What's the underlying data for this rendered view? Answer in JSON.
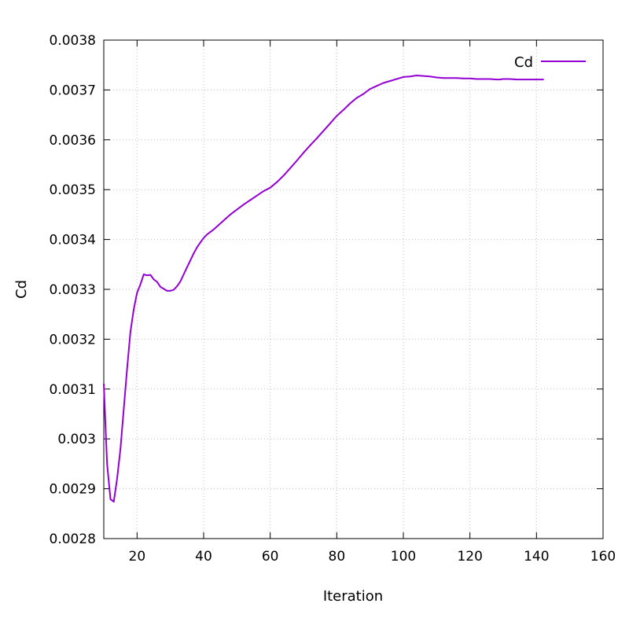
{
  "chart_data": {
    "type": "line",
    "title": "",
    "xlabel": "Iteration",
    "ylabel": "Cd",
    "xlim": [
      10,
      160
    ],
    "ylim": [
      0.0028,
      0.0038
    ],
    "xticks": [
      "20",
      "40",
      "60",
      "80",
      "100",
      "120",
      "140",
      "160"
    ],
    "yticks": [
      "0.0028",
      "0.0029",
      "0.003",
      "0.0031",
      "0.0032",
      "0.0033",
      "0.0034",
      "0.0035",
      "0.0036",
      "0.0037",
      "0.0038"
    ],
    "grid": true,
    "legend_position": "top-right",
    "series": [
      {
        "name": "Cd",
        "color": "#9400d3",
        "x": [
          10,
          11,
          12,
          13,
          14,
          15,
          16,
          17,
          18,
          19,
          20,
          21,
          22,
          23,
          24,
          25,
          26,
          27,
          28,
          29,
          30,
          31,
          32,
          33,
          34,
          35,
          36,
          37,
          38,
          39,
          40,
          41,
          42,
          43,
          44,
          45,
          46,
          47,
          48,
          49,
          50,
          52,
          54,
          56,
          58,
          60,
          62,
          64,
          66,
          68,
          70,
          72,
          74,
          76,
          78,
          80,
          82,
          84,
          86,
          88,
          90,
          92,
          94,
          96,
          98,
          100,
          102,
          104,
          106,
          108,
          110,
          112,
          114,
          116,
          118,
          120,
          122,
          124,
          126,
          128,
          129,
          130,
          132,
          134,
          136,
          138,
          140,
          142
        ],
        "y": [
          0.00311,
          0.00295,
          0.002879,
          0.002874,
          0.00292,
          0.00298,
          0.00306,
          0.00314,
          0.003215,
          0.00326,
          0.003293,
          0.00331,
          0.00333,
          0.003328,
          0.003329,
          0.00332,
          0.003315,
          0.003305,
          0.003301,
          0.003297,
          0.003297,
          0.003299,
          0.003306,
          0.003316,
          0.00333,
          0.003344,
          0.003358,
          0.003372,
          0.003384,
          0.003394,
          0.003403,
          0.00341,
          0.003415,
          0.00342,
          0.003426,
          0.003432,
          0.003438,
          0.003444,
          0.00345,
          0.003455,
          0.00346,
          0.00347,
          0.003479,
          0.003488,
          0.003497,
          0.003504,
          0.003515,
          0.003528,
          0.003543,
          0.003558,
          0.003574,
          0.003589,
          0.003603,
          0.003618,
          0.003633,
          0.003648,
          0.00366,
          0.003673,
          0.003684,
          0.003692,
          0.003702,
          0.003708,
          0.003714,
          0.003718,
          0.003722,
          0.003726,
          0.003727,
          0.003729,
          0.003728,
          0.003727,
          0.003725,
          0.003724,
          0.003724,
          0.003724,
          0.003723,
          0.003723,
          0.003722,
          0.003722,
          0.003722,
          0.003721,
          0.003721,
          0.003722,
          0.003722,
          0.003721,
          0.003721,
          0.003721,
          0.003721,
          0.003721
        ]
      }
    ]
  }
}
